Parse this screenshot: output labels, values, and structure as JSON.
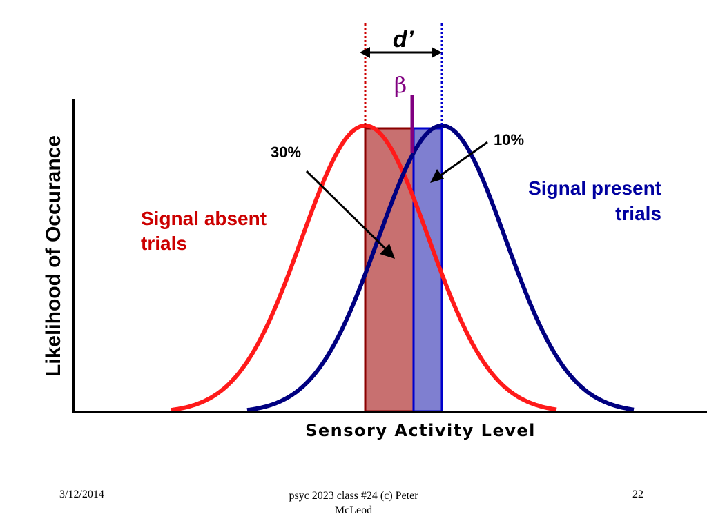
{
  "labels": {
    "d_prime": "d’",
    "beta": "β",
    "pct_absent": "30%",
    "pct_present": "10%",
    "signal_absent": [
      "Signal absent",
      "trials"
    ],
    "signal_present": [
      "Signal present",
      "trials"
    ],
    "y_axis": "Likelihood of Occurance",
    "x_axis": "Sensory Activity Level"
  },
  "footer": {
    "date": "3/12/2014",
    "title_lines": [
      "psyc 2023 class #24 (c) Peter",
      "McLeod"
    ],
    "page": "22"
  },
  "colors": {
    "signal_absent": "#ff1a1a",
    "signal_absent_label": "#cc0000",
    "signal_present": "#000080",
    "signal_present_label": "#0000a0",
    "red_region_fill": "#c87070",
    "red_region_border": "#8b0000",
    "blue_region_fill": "#7f7fd0",
    "blue_region_border": "#0000cc",
    "beta": "#800080",
    "axis": "#000000"
  }
}
